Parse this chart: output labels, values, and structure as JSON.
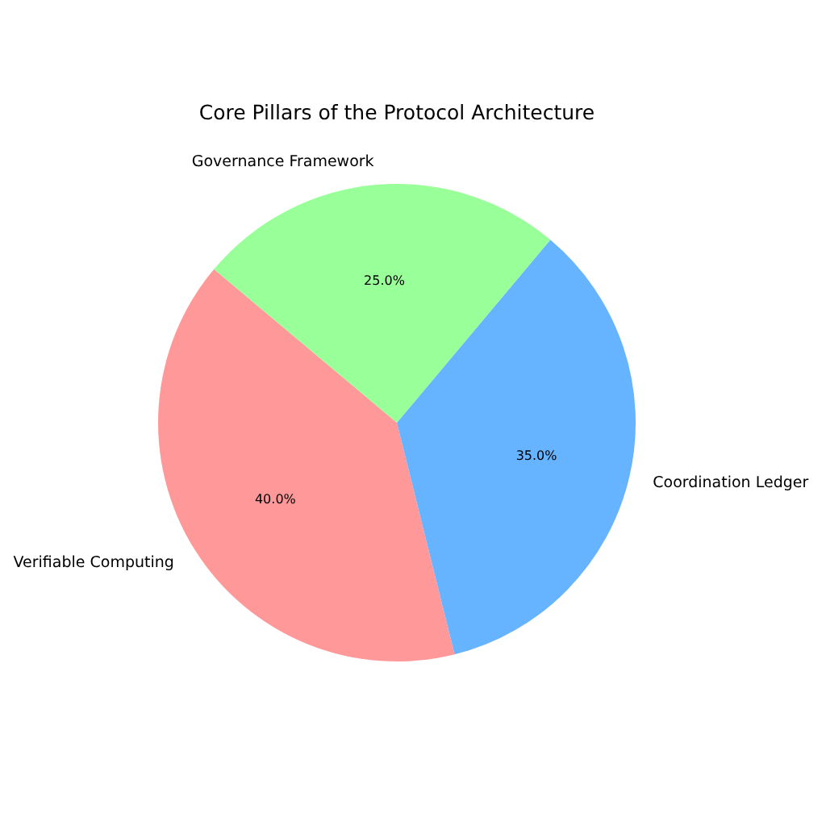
{
  "chart_data": {
    "type": "pie",
    "title": "Core Pillars of the Protocol Architecture",
    "categories": [
      "Verifiable Computing",
      "Coordination Ledger",
      "Governance Framework"
    ],
    "values": [
      40,
      35,
      25
    ],
    "colors": [
      "#ff9999",
      "#66b3ff",
      "#99ff99"
    ],
    "value_labels": [
      "40.0%",
      "35.0%",
      "25.0%"
    ]
  }
}
